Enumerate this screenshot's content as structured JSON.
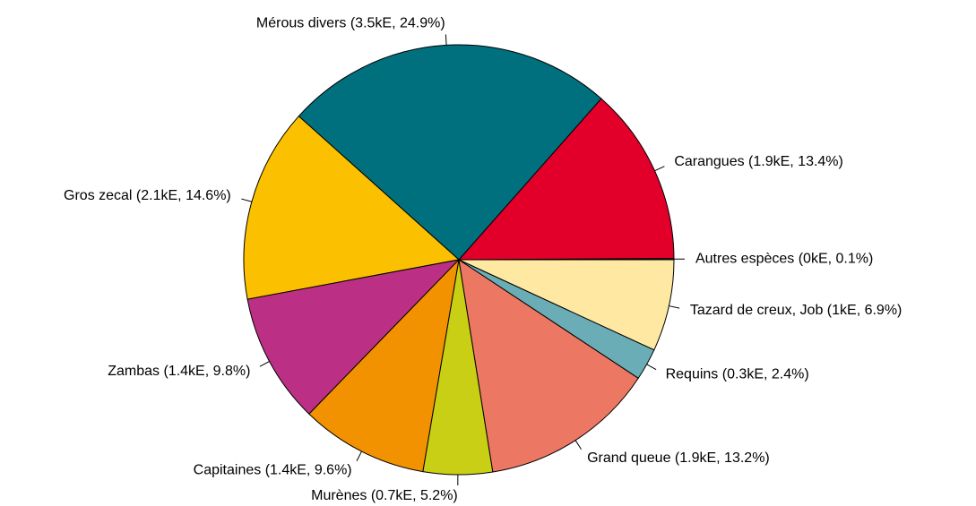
{
  "chart_data": {
    "type": "pie",
    "values": [
      0.1,
      13.4,
      24.9,
      14.6,
      9.8,
      9.6,
      5.2,
      13.2,
      2.4,
      6.9
    ],
    "value_labels": [
      "Autres espèces (0kE, 0.1%)",
      "Carangues (1.9kE, 13.4%)",
      "Mérous divers (3.5kE, 24.9%)",
      "Gros zecal (2.1kE, 14.6%)",
      "Zambas (1.4kE, 9.8%)",
      "Capitaines (1.4kE, 9.6%)",
      "Murènes (0.7kE, 5.2%)",
      "Grand queue (1.9kE, 13.2%)",
      "Requins (0.3kE, 2.4%)",
      "Tazard de creux, Job (1kE, 6.9%)"
    ],
    "colors": [
      "#1a1a1a",
      "#e2002b",
      "#00707e",
      "#fbc100",
      "#bb3085",
      "#f29200",
      "#c8cf14",
      "#ec7863",
      "#6aadb6",
      "#fee8a2"
    ]
  }
}
